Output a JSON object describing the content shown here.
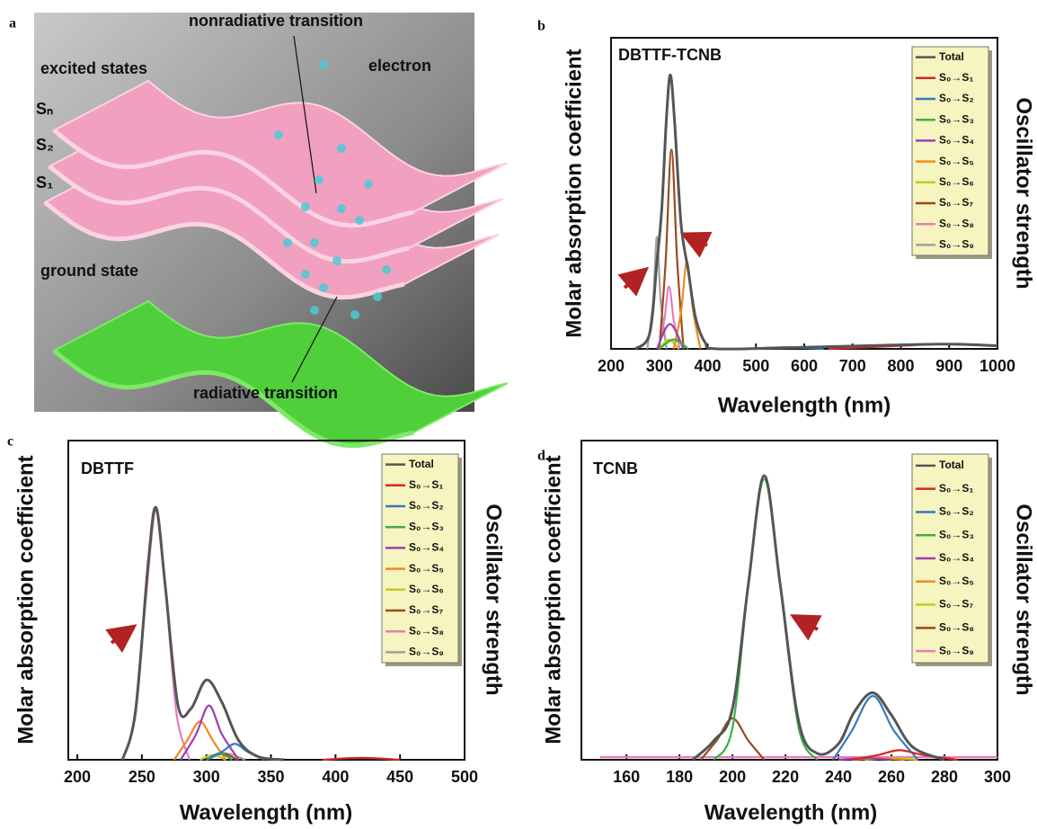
{
  "diagram": {
    "label": "a",
    "texts": [
      "excited states",
      "Sₙ",
      "S₂",
      "S₁",
      "ground state",
      "nonradiative transition",
      "electron",
      "radiative transition"
    ]
  },
  "chart_data": [
    {
      "type": "line",
      "label": "b",
      "title": "DBTTF-TCNB",
      "x_label": "Wavelength (nm)",
      "y_label": "Molar absorption coefficient",
      "y2_label": "Oscillator strength",
      "xlim": [
        200,
        1000
      ],
      "xticks": [
        200,
        300,
        400,
        500,
        600,
        700,
        800,
        900,
        1000
      ],
      "ylim": [
        0,
        100
      ],
      "series": [
        {
          "name": "Total",
          "color": "#555555",
          "x": [
            250,
            280,
            295,
            305,
            315,
            323,
            332,
            345,
            360,
            375,
            395,
            420,
            600,
            880,
            1000
          ],
          "values": [
            0,
            5,
            28,
            45,
            75,
            88,
            72,
            40,
            25,
            10,
            2,
            0,
            0.5,
            1.5,
            1
          ]
        },
        {
          "name": "S₀→S₁",
          "color": "#d62728",
          "x": [
            650,
            800,
            880,
            960,
            1000
          ],
          "values": [
            0,
            1,
            1.5,
            1.2,
            1
          ]
        },
        {
          "name": "S₀→S₂",
          "color": "#2f7bc4",
          "x": [
            480,
            560,
            640
          ],
          "values": [
            0,
            0.5,
            0
          ]
        },
        {
          "name": "S₀→S₃",
          "color": "#3cb043",
          "x": [
            300,
            330,
            360
          ],
          "values": [
            0,
            3,
            0
          ]
        },
        {
          "name": "S₀→S₄",
          "color": "#9b3fb5",
          "x": [
            295,
            322,
            350
          ],
          "values": [
            0,
            8,
            0
          ]
        },
        {
          "name": "S₀→S₅",
          "color": "#f08a1c",
          "x": [
            330,
            345,
            357,
            370,
            385
          ],
          "values": [
            0,
            12,
            28,
            12,
            0
          ]
        },
        {
          "name": "S₀→S₆",
          "color": "#c8c81e",
          "x": [
            300,
            320,
            340
          ],
          "values": [
            0,
            3,
            0
          ]
        },
        {
          "name": "S₀→S₇",
          "color": "#9a4a1e",
          "x": [
            300,
            313,
            325,
            337,
            350
          ],
          "values": [
            0,
            28,
            64,
            28,
            0
          ]
        },
        {
          "name": "S₀→S₈",
          "color": "#e77bc0",
          "x": [
            298,
            310,
            320,
            330,
            342
          ],
          "values": [
            0,
            9,
            20,
            9,
            0
          ]
        },
        {
          "name": "S₀→S₉",
          "color": "#a0a0a0",
          "x": [
            275,
            287,
            295,
            303,
            315
          ],
          "values": [
            0,
            15,
            36,
            15,
            0
          ]
        }
      ]
    },
    {
      "type": "line",
      "label": "c",
      "title": "DBTTF",
      "x_label": "Wavelength (nm)",
      "y_label": "Molar absorption coefficient",
      "y2_label": "Oscillator strength",
      "xlim": [
        193,
        500
      ],
      "xticks": [
        200,
        250,
        300,
        350,
        400,
        450,
        500
      ],
      "ylim": [
        0,
        100
      ],
      "series": [
        {
          "name": "Total",
          "color": "#555555",
          "x": [
            235,
            245,
            255,
            261,
            268,
            278,
            288,
            300,
            312,
            325,
            340,
            360
          ],
          "values": [
            0,
            15,
            62,
            79,
            55,
            17,
            16,
            25,
            18,
            6,
            1,
            0
          ]
        },
        {
          "name": "S₀→S₁",
          "color": "#d62728",
          "x": [
            390,
            420,
            450
          ],
          "values": [
            0,
            0.6,
            0
          ]
        },
        {
          "name": "S₀→S₂",
          "color": "#2f7bc4",
          "x": [
            300,
            312,
            322,
            332,
            345
          ],
          "values": [
            0,
            2.5,
            5,
            2.5,
            0
          ]
        },
        {
          "name": "S₀→S₃",
          "color": "#3cb043",
          "x": [
            300,
            310,
            320
          ],
          "values": [
            0,
            2,
            0
          ]
        },
        {
          "name": "S₀→S₄",
          "color": "#9b3fb5",
          "x": [
            280,
            292,
            302,
            312,
            325
          ],
          "values": [
            0,
            8,
            17,
            8,
            0
          ]
        },
        {
          "name": "S₀→S₅",
          "color": "#f08a1c",
          "x": [
            275,
            285,
            295,
            305,
            315
          ],
          "values": [
            0,
            6,
            12,
            6,
            0
          ]
        },
        {
          "name": "S₀→S₆",
          "color": "#c8c81e",
          "x": [
            295,
            305,
            315
          ],
          "values": [
            0,
            1.5,
            0
          ]
        },
        {
          "name": "S₀→S₇",
          "color": "#9a4a1e",
          "x": [
            300,
            312,
            324
          ],
          "values": [
            0,
            2,
            0
          ]
        },
        {
          "name": "S₀→S₈",
          "color": "#e77bc0",
          "x": [
            235,
            245,
            253,
            261,
            269,
            277,
            287
          ],
          "values": [
            0,
            14,
            50,
            78,
            50,
            14,
            0
          ]
        },
        {
          "name": "S₀→S₉",
          "color": "#a0a0a0",
          "x": [
            300,
            315,
            330
          ],
          "values": [
            0,
            2,
            0
          ]
        }
      ]
    },
    {
      "type": "line",
      "label": "d",
      "title": "TCNB",
      "x_label": "Wavelength (nm)",
      "y_label": "Molar absorption coefficient",
      "y2_label": "Oscillator strength",
      "xlim": [
        143,
        300
      ],
      "xticks": [
        160,
        180,
        200,
        220,
        240,
        260,
        280,
        300
      ],
      "ylim": [
        0,
        100
      ],
      "series": [
        {
          "name": "Total",
          "color": "#555555",
          "x": [
            185,
            193,
            200,
            206,
            212,
            218,
            225,
            232,
            240,
            246,
            253,
            260,
            268,
            280
          ],
          "values": [
            0,
            6,
            16,
            55,
            89,
            55,
            12,
            2,
            5,
            15,
            21,
            14,
            4,
            0
          ]
        },
        {
          "name": "S₀→S₁",
          "color": "#d62728",
          "x": [
            245,
            255,
            263,
            272,
            285
          ],
          "values": [
            0,
            1.5,
            3,
            1.5,
            0
          ]
        },
        {
          "name": "S₀→S₂",
          "color": "#2f7bc4",
          "x": [
            238,
            245,
            253,
            261,
            270
          ],
          "values": [
            0,
            9,
            20,
            9,
            0
          ]
        },
        {
          "name": "S₀→S₃",
          "color": "#3cb043",
          "x": [
            193,
            200,
            206,
            212,
            218,
            225,
            232
          ],
          "values": [
            0,
            10,
            55,
            88,
            55,
            10,
            0
          ]
        },
        {
          "name": "S₀→S₄",
          "color": "#9b3fb5",
          "x": [
            240,
            250,
            260
          ],
          "values": [
            0,
            0.5,
            0
          ]
        },
        {
          "name": "S₀→S₅",
          "color": "#f08a1c",
          "x": [
            245,
            255,
            265
          ],
          "values": [
            0,
            0.5,
            0
          ]
        },
        {
          "name": "S₀→S₇",
          "color": "#c8c81e",
          "x": [
            250,
            260,
            270
          ],
          "values": [
            0,
            0.5,
            0
          ]
        },
        {
          "name": "S₀→S₈",
          "color": "#9a4a1e",
          "x": [
            188,
            194,
            200,
            206,
            212
          ],
          "values": [
            0,
            6,
            13,
            6,
            0
          ]
        },
        {
          "name": "S₀→S₉",
          "color": "#e77bc0",
          "x": [
            150,
            220,
            300
          ],
          "values": [
            0.8,
            0.8,
            0.8
          ]
        }
      ]
    }
  ]
}
